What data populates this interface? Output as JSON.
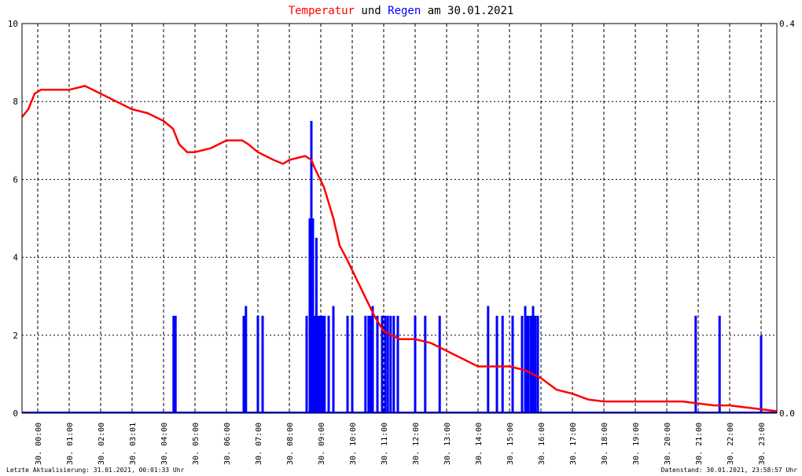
{
  "title": {
    "part1": "Temperatur",
    "part2": " und ",
    "part3": "Regen",
    "part4": " am 30.01.2021"
  },
  "footer": {
    "left": "Letzte Aktualisierung: 31.01.2021, 00:01:33 Uhr",
    "right": "Datenstand: 30.01.2021, 23:58:57 Uhr"
  },
  "colors": {
    "temperature": "#ff0000",
    "rain": "#0000ff",
    "grid": "#000000"
  },
  "chart_data": {
    "type": "line",
    "x_unit": "hours",
    "xlim": [
      0,
      24
    ],
    "x_tick_labels": [
      "30. 00:00",
      "30. 01:00",
      "30. 02:00",
      "30. 03:01",
      "30. 04:00",
      "30. 05:00",
      "30. 06:00",
      "30. 07:00",
      "30. 08:00",
      "30. 09:00",
      "30. 10:00",
      "30. 11:00",
      "30. 12:00",
      "30. 13:00",
      "30. 14:00",
      "30. 15:00",
      "30. 16:00",
      "30. 17:00",
      "30. 18:00",
      "30. 19:00",
      "30. 20:00",
      "30. 21:00",
      "30. 22:00",
      "30. 23:00"
    ],
    "y_left": {
      "ylim": [
        0,
        10
      ],
      "ticks": [
        "0",
        "2",
        "4",
        "6",
        "8",
        "10"
      ]
    },
    "y_right": {
      "ylim": [
        0,
        0.4
      ],
      "ticks": [
        "0.0",
        "0.4"
      ]
    },
    "grid": true,
    "series": [
      {
        "name": "Temperatur",
        "axis": "left",
        "x": [
          0,
          0.2,
          0.4,
          0.6,
          1,
          1.5,
          2,
          2.5,
          3,
          3.5,
          4,
          4.5,
          4.8,
          5,
          5.25,
          5.5,
          6,
          6.5,
          7,
          7.2,
          7.5,
          8,
          8.3,
          8.5,
          9,
          9.2,
          9.3,
          9.6,
          9.9,
          10.1,
          10.3,
          10.6,
          10.9,
          11.2,
          11.5,
          12,
          12.5,
          13,
          13.5,
          14,
          14.5,
          15,
          15.5,
          16,
          16.5,
          17,
          17.5,
          18,
          18.5,
          19,
          20,
          21,
          22,
          22.5,
          23,
          23.5,
          24
        ],
        "values": [
          7.6,
          7.8,
          8.2,
          8.3,
          8.3,
          8.3,
          8.4,
          8.2,
          8.0,
          7.8,
          7.7,
          7.5,
          7.3,
          6.9,
          6.7,
          6.7,
          6.8,
          7.0,
          7.0,
          6.9,
          6.7,
          6.5,
          6.4,
          6.5,
          6.6,
          6.5,
          6.3,
          5.8,
          5.0,
          4.3,
          4.0,
          3.5,
          3.0,
          2.5,
          2.1,
          1.9,
          1.9,
          1.8,
          1.6,
          1.4,
          1.2,
          1.2,
          1.2,
          1.1,
          0.9,
          0.6,
          0.5,
          0.35,
          0.3,
          0.3,
          0.3,
          0.3,
          0.2,
          0.2,
          0.15,
          0.1,
          0.05
        ]
      },
      {
        "name": "Regen",
        "axis": "right",
        "type": "bar",
        "x": [
          4.82,
          4.88,
          7.05,
          7.12,
          7.5,
          7.65,
          9.05,
          9.15,
          9.2,
          9.25,
          9.28,
          9.32,
          9.36,
          9.42,
          9.48,
          9.55,
          9.62,
          9.75,
          9.9,
          10.35,
          10.5,
          10.92,
          11.02,
          11.08,
          11.15,
          11.3,
          11.45,
          11.55,
          11.63,
          11.72,
          11.82,
          11.95,
          12.5,
          12.82,
          13.28,
          14.82,
          15.1,
          15.28,
          15.6,
          15.9,
          16.0,
          16.05,
          16.1,
          16.18,
          16.25,
          16.32,
          16.4,
          21.42,
          22.18,
          23.5
        ],
        "values": [
          0.1,
          0.1,
          0.1,
          0.11,
          0.1,
          0.1,
          0.1,
          0.2,
          0.3,
          0.2,
          0.1,
          0.1,
          0.18,
          0.1,
          0.1,
          0.1,
          0.1,
          0.1,
          0.11,
          0.1,
          0.1,
          0.1,
          0.1,
          0.1,
          0.11,
          0.1,
          0.1,
          0.1,
          0.1,
          0.1,
          0.1,
          0.1,
          0.1,
          0.1,
          0.1,
          0.11,
          0.1,
          0.1,
          0.1,
          0.1,
          0.11,
          0.1,
          0.1,
          0.1,
          0.11,
          0.1,
          0.1,
          0.1,
          0.1,
          0.08
        ]
      }
    ]
  }
}
